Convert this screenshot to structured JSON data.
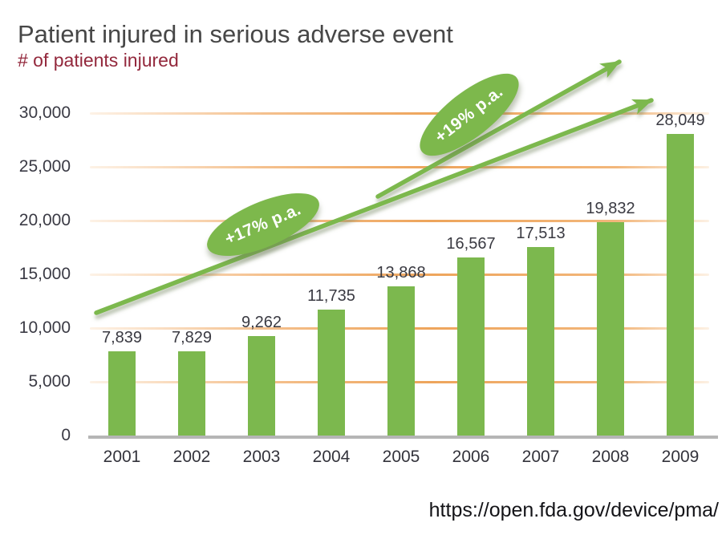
{
  "title": "Patient injured in serious adverse event",
  "subtitle": "# of patients injured",
  "source_url": "https://open.fda.gov/device/pma/",
  "chart_data": {
    "type": "bar",
    "title": "Patient injured in serious adverse event",
    "ylabel": "# of patients injured",
    "categories": [
      "2001",
      "2002",
      "2003",
      "2004",
      "2005",
      "2006",
      "2007",
      "2008",
      "2009"
    ],
    "values": [
      7839,
      7829,
      9262,
      11735,
      13868,
      16567,
      17513,
      19832,
      28049
    ],
    "value_labels": [
      "7,839",
      "7,829",
      "9,262",
      "11,735",
      "13,868",
      "16,567",
      "17,513",
      "19,832",
      "28,049"
    ],
    "ylim": [
      0,
      30000
    ],
    "grid": "horizontal",
    "y_ticks": [
      {
        "label": "30,000",
        "value": 30000
      },
      {
        "label": "25,000",
        "value": 25000
      },
      {
        "label": "20,000",
        "value": 20000
      },
      {
        "label": "15,000",
        "value": 15000
      },
      {
        "label": "10,000",
        "value": 10000
      },
      {
        "label": "5,000",
        "value": 5000
      },
      {
        "label": "0",
        "value": 0
      }
    ],
    "bar_color": "#7cb84e",
    "gridline_color": "#eda053",
    "annotations": [
      {
        "label": "+17% p.a.",
        "from": [
          120,
          390
        ],
        "to": [
          812,
          125
        ]
      },
      {
        "label": "+19% p.a.",
        "from": [
          471,
          245
        ],
        "to": [
          772,
          77
        ]
      }
    ]
  }
}
